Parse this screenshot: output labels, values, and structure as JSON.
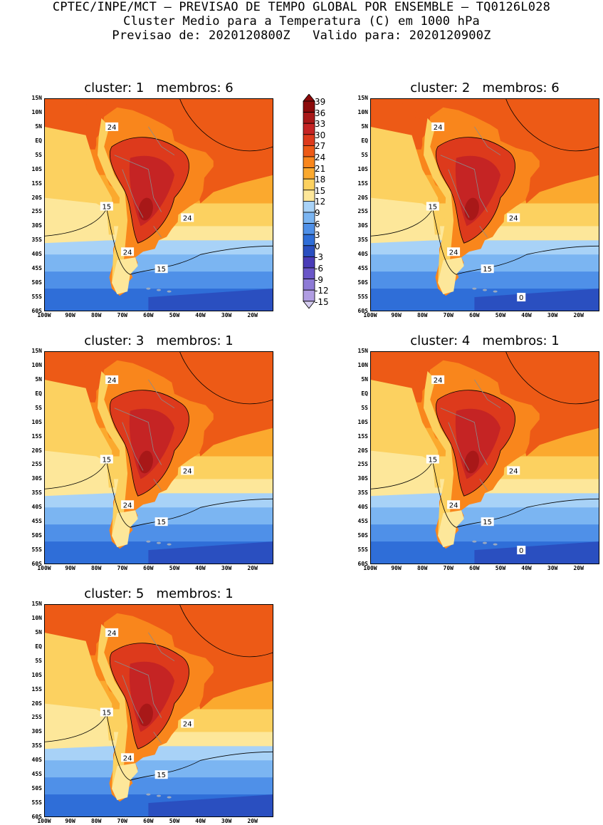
{
  "header": {
    "line1": "CPTEC/INPE/MCT – PREVISAO DE TEMPO GLOBAL POR ENSEMBLE – TQ0126L028",
    "line2": "Cluster Medio para a Temperatura (C) em 1000 hPa",
    "line3": "Previsao de: 2020120800Z   Valido para: 2020120900Z"
  },
  "axes": {
    "lat_labels": [
      "15N",
      "10N",
      "5N",
      "EQ",
      "5S",
      "10S",
      "15S",
      "20S",
      "25S",
      "30S",
      "35S",
      "40S",
      "45S",
      "50S",
      "55S",
      "60S"
    ],
    "lon_labels": [
      "100W",
      "90W",
      "80W",
      "70W",
      "60W",
      "50W",
      "40W",
      "30W",
      "20W"
    ]
  },
  "colorbar": {
    "labels": [
      "39",
      "36",
      "33",
      "30",
      "27",
      "24",
      "21",
      "18",
      "15",
      "12",
      "9",
      "6",
      "3",
      "0",
      "-3",
      "-6",
      "-9",
      "-12",
      "-15"
    ],
    "colors": [
      "#8b0a0a",
      "#a81818",
      "#c52424",
      "#dd3a1c",
      "#ed5a16",
      "#f9861c",
      "#fba92e",
      "#fcd160",
      "#fde79a",
      "#a8d2f7",
      "#7bb5f2",
      "#4f90e8",
      "#2f6ed8",
      "#2a4fc0",
      "#4a3cb8",
      "#6a56c8",
      "#8d7ad6",
      "#b09de2",
      "#d6cdf0"
    ]
  },
  "panels": [
    {
      "title": "cluster: 1   membros: 6",
      "labels": [
        "24",
        "24",
        "15",
        "24",
        "15"
      ],
      "cold_label": null
    },
    {
      "title": "cluster: 2   membros: 6",
      "labels": [
        "24",
        "24",
        "15",
        "24",
        "15"
      ],
      "cold_label": "0"
    },
    {
      "title": "cluster: 3   membros: 1",
      "labels": [
        "24",
        "24",
        "15",
        "24",
        "15"
      ],
      "cold_label": null
    },
    {
      "title": "cluster: 4   membros: 1",
      "labels": [
        "24",
        "24",
        "15",
        "24",
        "15"
      ],
      "cold_label": "0"
    },
    {
      "title": "cluster: 5   membros: 1",
      "labels": [
        "24",
        "24",
        "15",
        "24",
        "15"
      ],
      "cold_label": null
    }
  ],
  "panel_labels_extra": {
    "24b": "24"
  }
}
